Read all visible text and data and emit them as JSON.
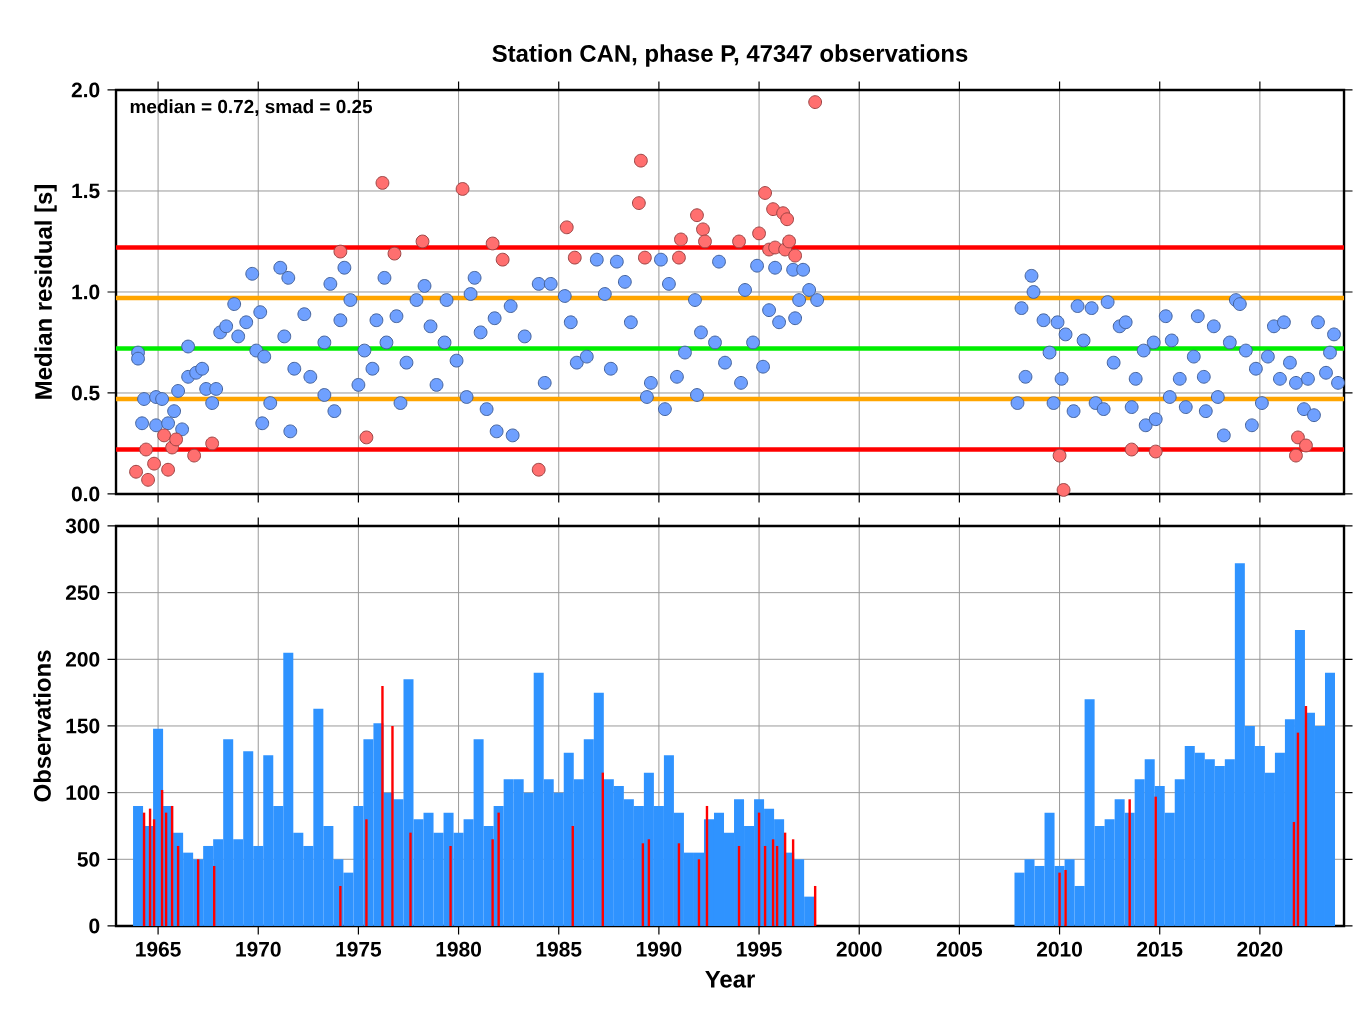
{
  "chart_data": [
    {
      "type": "scatter",
      "title": "Station CAN, phase P, 47347 observations",
      "ylabel": "Median residual [s]",
      "xlim": [
        1962.9,
        2024.2
      ],
      "ylim": [
        0,
        2
      ],
      "xticks": [
        1965,
        1970,
        1975,
        1980,
        1985,
        1990,
        1995,
        2000,
        2005,
        2010,
        2015,
        2020
      ],
      "yticks": [
        {
          "value": 0,
          "label": "0.0"
        },
        {
          "value": 0.5,
          "label": "0.5"
        },
        {
          "value": 1.0,
          "label": "1.0"
        },
        {
          "value": 1.5,
          "label": "1.5"
        },
        {
          "value": 2.0,
          "label": "2.0"
        }
      ],
      "tick_labels": "y",
      "grid": true,
      "marker": "circle",
      "annotations": [
        "median = 0.72, smad = 0.25"
      ],
      "ref_lines": [
        {
          "axis": "y",
          "value": 0.72,
          "color": "#00ee00"
        },
        {
          "axis": "y",
          "value": 0.47,
          "color": "#ffa500"
        },
        {
          "axis": "y",
          "value": 0.97,
          "color": "#ffa500"
        },
        {
          "axis": "y",
          "value": 0.22,
          "color": "#ff0000"
        },
        {
          "axis": "y",
          "value": 1.22,
          "color": "#ff0000"
        }
      ],
      "series": [
        {
          "color": "#6fa0ff",
          "x": [
            1964.0,
            1964.0,
            1964.2,
            1964.3,
            1964.9,
            1965.2,
            1964.9,
            1965.5,
            1965.8,
            1966.0,
            1966.2,
            1966.5,
            1966.9,
            1967.2,
            1966.5,
            1967.4,
            1967.7,
            1967.9,
            1968.1,
            1968.8,
            1968.4,
            1969.0,
            1969.4,
            1969.7,
            1969.9,
            1970.1,
            1970.3,
            1970.2,
            1970.6,
            1971.1,
            1971.5,
            1971.3,
            1971.6,
            1971.8,
            1972.3,
            1972.6,
            1973.3,
            1973.3,
            1973.8,
            1973.6,
            1974.3,
            1974.1,
            1974.6,
            1975.0,
            1975.3,
            1975.7,
            1975.9,
            1976.3,
            1976.4,
            1976.9,
            1977.1,
            1977.4,
            1977.9,
            1978.3,
            1978.6,
            1978.9,
            1979.3,
            1979.4,
            1979.9,
            1980.4,
            1980.6,
            1980.8,
            1981.1,
            1981.4,
            1981.8,
            1981.9,
            1982.7,
            1982.6,
            1983.3,
            1984.0,
            1984.3,
            1984.6,
            1985.3,
            1985.6,
            1985.9,
            1986.4,
            1986.9,
            1987.3,
            1987.6,
            1987.9,
            1988.3,
            1988.6,
            1989.4,
            1989.6,
            1990.1,
            1990.3,
            1990.5,
            1990.9,
            1991.3,
            1991.9,
            1991.8,
            1992.1,
            1992.8,
            1993.0,
            1993.3,
            1994.1,
            1994.3,
            1994.7,
            1994.9,
            1995.2,
            1995.5,
            1995.8,
            1996.0,
            1996.7,
            1997.0,
            1997.2,
            1997.5,
            1997.9,
            1996.8,
            2007.9,
            2008.1,
            2008.6,
            2008.7,
            2008.3,
            2009.2,
            2009.5,
            2009.7,
            2009.9,
            2010.1,
            2010.3,
            2010.7,
            2010.9,
            2011.2,
            2011.6,
            2011.8,
            2012.2,
            2012.4,
            2012.7,
            2013.0,
            2013.3,
            2013.6,
            2013.8,
            2014.2,
            2014.3,
            2014.7,
            2014.8,
            2015.3,
            2015.5,
            2015.6,
            2016.0,
            2016.3,
            2016.7,
            2016.9,
            2017.2,
            2017.3,
            2017.7,
            2017.9,
            2018.2,
            2018.5,
            2018.8,
            2019.0,
            2019.3,
            2019.6,
            2019.8,
            2020.1,
            2020.4,
            2020.7,
            2021.0,
            2021.2,
            2021.5,
            2021.8,
            2022.2,
            2022.4,
            2022.7,
            2022.9,
            2023.3,
            2023.5,
            2023.7,
            2023.9
          ],
          "values": [
            0.7,
            0.67,
            0.35,
            0.47,
            0.48,
            0.47,
            0.34,
            0.35,
            0.41,
            0.51,
            0.32,
            0.58,
            0.6,
            0.62,
            0.73,
            0.52,
            0.45,
            0.52,
            0.8,
            0.94,
            0.83,
            0.78,
            0.85,
            1.09,
            0.71,
            0.9,
            0.68,
            0.35,
            0.45,
            1.12,
            1.07,
            0.78,
            0.31,
            0.62,
            0.89,
            0.58,
            0.75,
            0.49,
            0.41,
            1.04,
            1.12,
            0.86,
            0.96,
            0.54,
            0.71,
            0.62,
            0.86,
            1.07,
            0.75,
            0.88,
            0.45,
            0.65,
            0.96,
            1.03,
            0.83,
            0.54,
            0.75,
            0.96,
            0.66,
            0.48,
            0.99,
            1.07,
            0.8,
            0.42,
            0.87,
            0.31,
            0.29,
            0.93,
            0.78,
            1.04,
            0.55,
            1.04,
            0.98,
            0.85,
            0.65,
            0.68,
            1.16,
            0.99,
            0.62,
            1.15,
            1.05,
            0.85,
            0.48,
            0.55,
            1.16,
            0.42,
            1.04,
            0.58,
            0.7,
            0.49,
            0.96,
            0.8,
            0.75,
            1.15,
            0.65,
            0.55,
            1.01,
            0.75,
            1.13,
            0.63,
            0.91,
            1.12,
            0.85,
            1.11,
            0.96,
            1.11,
            1.01,
            0.96,
            0.87,
            0.45,
            0.92,
            1.08,
            1.0,
            0.58,
            0.86,
            0.7,
            0.45,
            0.85,
            0.57,
            0.79,
            0.41,
            0.93,
            0.76,
            0.92,
            0.45,
            0.42,
            0.95,
            0.65,
            0.83,
            0.85,
            0.43,
            0.57,
            0.71,
            0.34,
            0.75,
            0.37,
            0.88,
            0.48,
            0.76,
            0.57,
            0.43,
            0.68,
            0.88,
            0.58,
            0.41,
            0.83,
            0.48,
            0.29,
            0.75,
            0.96,
            0.94,
            0.71,
            0.34,
            0.62,
            0.45,
            0.68,
            0.83,
            0.57,
            0.85,
            0.65,
            0.55,
            0.42,
            0.57,
            0.39,
            0.85,
            0.6,
            0.7,
            0.79,
            0.55
          ]
        },
        {
          "color": "#ff6f6f",
          "x": [
            1963.9,
            1964.5,
            1964.4,
            1964.8,
            1965.3,
            1965.5,
            1965.7,
            1965.9,
            1966.8,
            1967.7,
            1974.1,
            1975.4,
            1976.2,
            1976.8,
            1978.2,
            1980.2,
            1981.7,
            1982.2,
            1984.0,
            1985.4,
            1985.8,
            1989.1,
            1989.0,
            1989.3,
            1991.0,
            1991.1,
            1991.9,
            1992.2,
            1992.3,
            1994.0,
            1995.3,
            1995.7,
            1996.2,
            1996.4,
            1995.0,
            1995.5,
            1995.8,
            1996.3,
            1996.5,
            1996.8,
            1997.8,
            2010.0,
            2010.2,
            2013.6,
            2014.8,
            2021.9,
            2022.3,
            2021.8
          ],
          "values": [
            0.11,
            0.07,
            0.22,
            0.15,
            0.29,
            0.12,
            0.23,
            0.27,
            0.19,
            0.25,
            1.2,
            0.28,
            1.54,
            1.19,
            1.25,
            1.51,
            1.24,
            1.16,
            0.12,
            1.32,
            1.17,
            1.65,
            1.44,
            1.17,
            1.17,
            1.26,
            1.38,
            1.31,
            1.25,
            1.25,
            1.49,
            1.41,
            1.39,
            1.36,
            1.29,
            1.21,
            1.22,
            1.21,
            1.25,
            1.18,
            1.94,
            0.19,
            0.02,
            0.22,
            0.21,
            0.28,
            0.24,
            0.19
          ]
        }
      ]
    },
    {
      "type": "bar",
      "xlabel": "Year",
      "ylabel": "Observations",
      "xlim": [
        1962.9,
        2024.2
      ],
      "ylim": [
        0,
        300
      ],
      "xticks": [
        1965,
        1970,
        1975,
        1980,
        1985,
        1990,
        1995,
        2000,
        2005,
        2010,
        2015,
        2020
      ],
      "yticks": [
        0,
        50,
        100,
        150,
        200,
        250,
        300
      ],
      "grid": true,
      "series": [
        {
          "color": "#2f93ff",
          "x": [
            1964.0,
            1964.5,
            1965.0,
            1965.5,
            1966.0,
            1966.5,
            1967.0,
            1967.5,
            1968.0,
            1968.5,
            1969.0,
            1969.5,
            1970.0,
            1970.5,
            1971.0,
            1971.5,
            1972.0,
            1972.5,
            1973.0,
            1973.5,
            1974.0,
            1974.5,
            1975.0,
            1975.5,
            1976.0,
            1976.5,
            1977.0,
            1977.5,
            1978.0,
            1978.5,
            1979.0,
            1979.5,
            1980.0,
            1980.5,
            1981.0,
            1981.5,
            1982.0,
            1982.5,
            1983.0,
            1983.5,
            1984.0,
            1984.5,
            1985.0,
            1985.5,
            1986.0,
            1986.5,
            1987.0,
            1987.5,
            1988.0,
            1988.5,
            1989.0,
            1989.5,
            1990.0,
            1990.5,
            1991.0,
            1991.5,
            1992.0,
            1992.5,
            1993.0,
            1993.5,
            1994.0,
            1994.5,
            1995.0,
            1995.5,
            1996.0,
            1996.5,
            1997.0,
            1997.5,
            2008.0,
            2008.5,
            2009.0,
            2009.5,
            2010.0,
            2010.5,
            2011.0,
            2011.5,
            2012.0,
            2012.5,
            2013.0,
            2013.5,
            2014.0,
            2014.5,
            2015.0,
            2015.5,
            2016.0,
            2016.5,
            2017.0,
            2017.5,
            2018.0,
            2018.5,
            2019.0,
            2019.5,
            2020.0,
            2020.5,
            2021.0,
            2021.5,
            2022.0,
            2022.5,
            2023.0,
            2023.5
          ],
          "values": [
            90,
            75,
            148,
            90,
            70,
            55,
            50,
            60,
            65,
            140,
            65,
            131,
            60,
            128,
            90,
            205,
            70,
            60,
            163,
            75,
            50,
            40,
            90,
            140,
            152,
            100,
            95,
            185,
            80,
            85,
            70,
            85,
            70,
            80,
            140,
            75,
            90,
            110,
            110,
            100,
            190,
            110,
            100,
            130,
            110,
            140,
            175,
            110,
            105,
            95,
            90,
            115,
            90,
            128,
            85,
            55,
            55,
            80,
            85,
            70,
            95,
            75,
            95,
            88,
            80,
            55,
            50,
            22,
            40,
            50,
            45,
            85,
            45,
            50,
            30,
            170,
            75,
            80,
            95,
            85,
            110,
            125,
            105,
            85,
            110,
            135,
            130,
            125,
            120,
            125,
            272,
            150,
            135,
            115,
            130,
            155,
            222,
            160,
            150,
            190
          ]
        },
        {
          "color": "#ff0000",
          "x": [
            1964.3,
            1964.6,
            1964.8,
            1965.2,
            1965.4,
            1965.7,
            1966.0,
            1967.0,
            1967.8,
            1974.1,
            1975.4,
            1976.2,
            1976.7,
            1977.6,
            1979.6,
            1981.7,
            1982.0,
            1985.7,
            1987.2,
            1989.2,
            1989.5,
            1991.0,
            1992.0,
            1992.4,
            1994.0,
            1995.0,
            1995.3,
            1995.7,
            1995.9,
            1996.3,
            1996.7,
            1997.8,
            2010.0,
            2010.3,
            2013.5,
            2014.8,
            2021.7,
            2021.9,
            2022.3
          ],
          "values": [
            85,
            88,
            80,
            102,
            85,
            90,
            60,
            50,
            45,
            30,
            80,
            180,
            150,
            70,
            60,
            65,
            85,
            75,
            115,
            62,
            65,
            62,
            50,
            90,
            60,
            85,
            60,
            65,
            60,
            70,
            65,
            30,
            40,
            42,
            95,
            97,
            78,
            145,
            165
          ]
        }
      ]
    }
  ]
}
